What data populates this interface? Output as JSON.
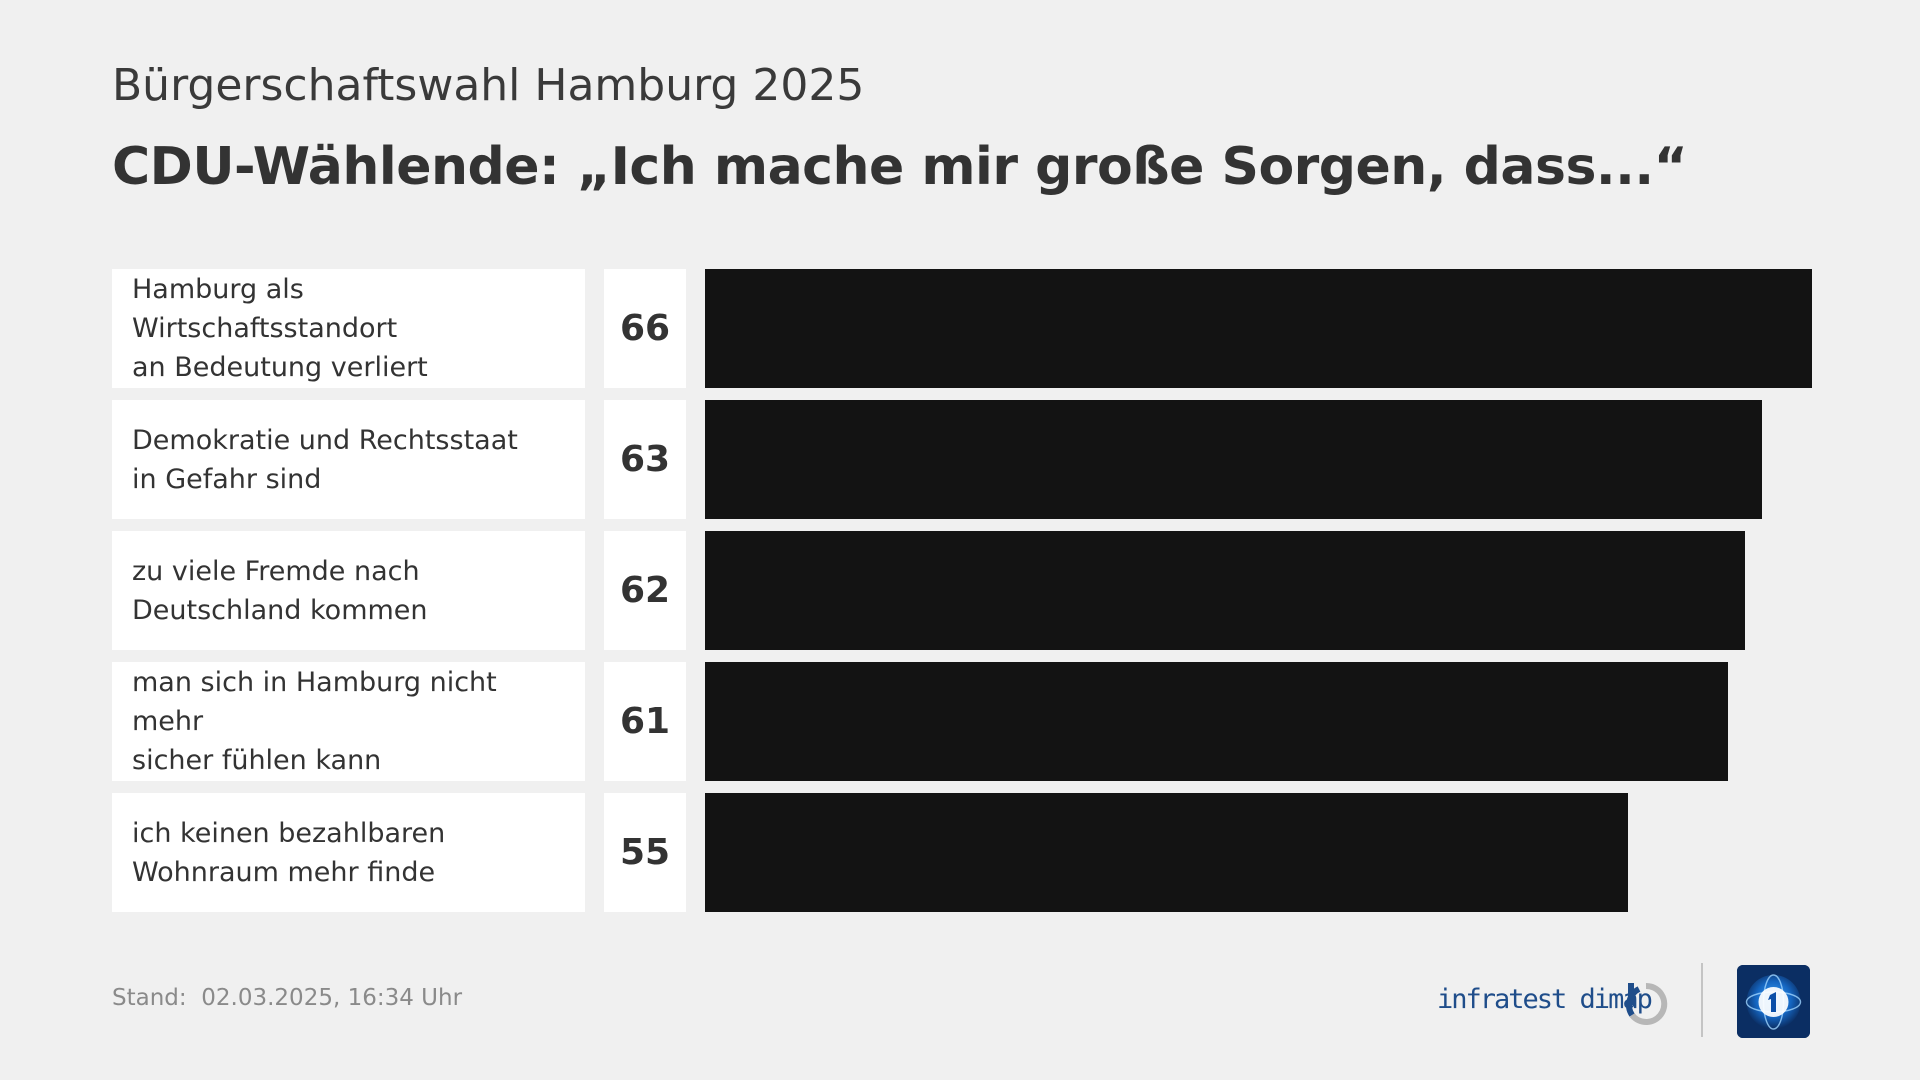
{
  "header": {
    "subtitle": "Bürgerschaftswahl Hamburg 2025",
    "title": "CDU-Wählende: „Ich mache mir große Sorgen, dass...“"
  },
  "chart_data": {
    "type": "bar",
    "orientation": "horizontal",
    "categories": [
      "Hamburg als Wirtschaftsstandort an Bedeutung verliert",
      "Demokratie und Rechtsstaat in Gefahr sind",
      "zu viele Fremde nach Deutschland kommen",
      "man sich in Hamburg nicht mehr sicher fühlen kann",
      "ich keinen bezahlbaren Wohnraum mehr finde"
    ],
    "label_lines": [
      [
        "Hamburg als Wirtschaftsstandort",
        "an Bedeutung verliert"
      ],
      [
        "Demokratie und Rechtsstaat",
        "in Gefahr sind"
      ],
      [
        "zu viele Fremde nach",
        "Deutschland kommen"
      ],
      [
        "man sich in Hamburg nicht mehr",
        "sicher fühlen kann"
      ],
      [
        "ich keinen bezahlbaren",
        "Wohnraum mehr finde"
      ]
    ],
    "values": [
      66,
      63,
      62,
      61,
      55
    ],
    "xlim": [
      0,
      66
    ],
    "bar_color": "#131313",
    "grid": false,
    "legend": "none"
  },
  "footer": {
    "stand_label": "Stand:",
    "stand_value": "02.03.2025, 16:34 Uhr",
    "brand": "infratest dimap"
  },
  "icons": {
    "brand_mark": "infratest-dimap-logo-icon",
    "broadcaster_logo": "ard-tagesschau-logo-icon"
  },
  "colors": {
    "background": "#f0f0f0",
    "panel": "#ffffff",
    "text": "#333333",
    "bar": "#131313",
    "brand_blue": "#1f4d8a",
    "logo_navy": "#0b2e63"
  }
}
